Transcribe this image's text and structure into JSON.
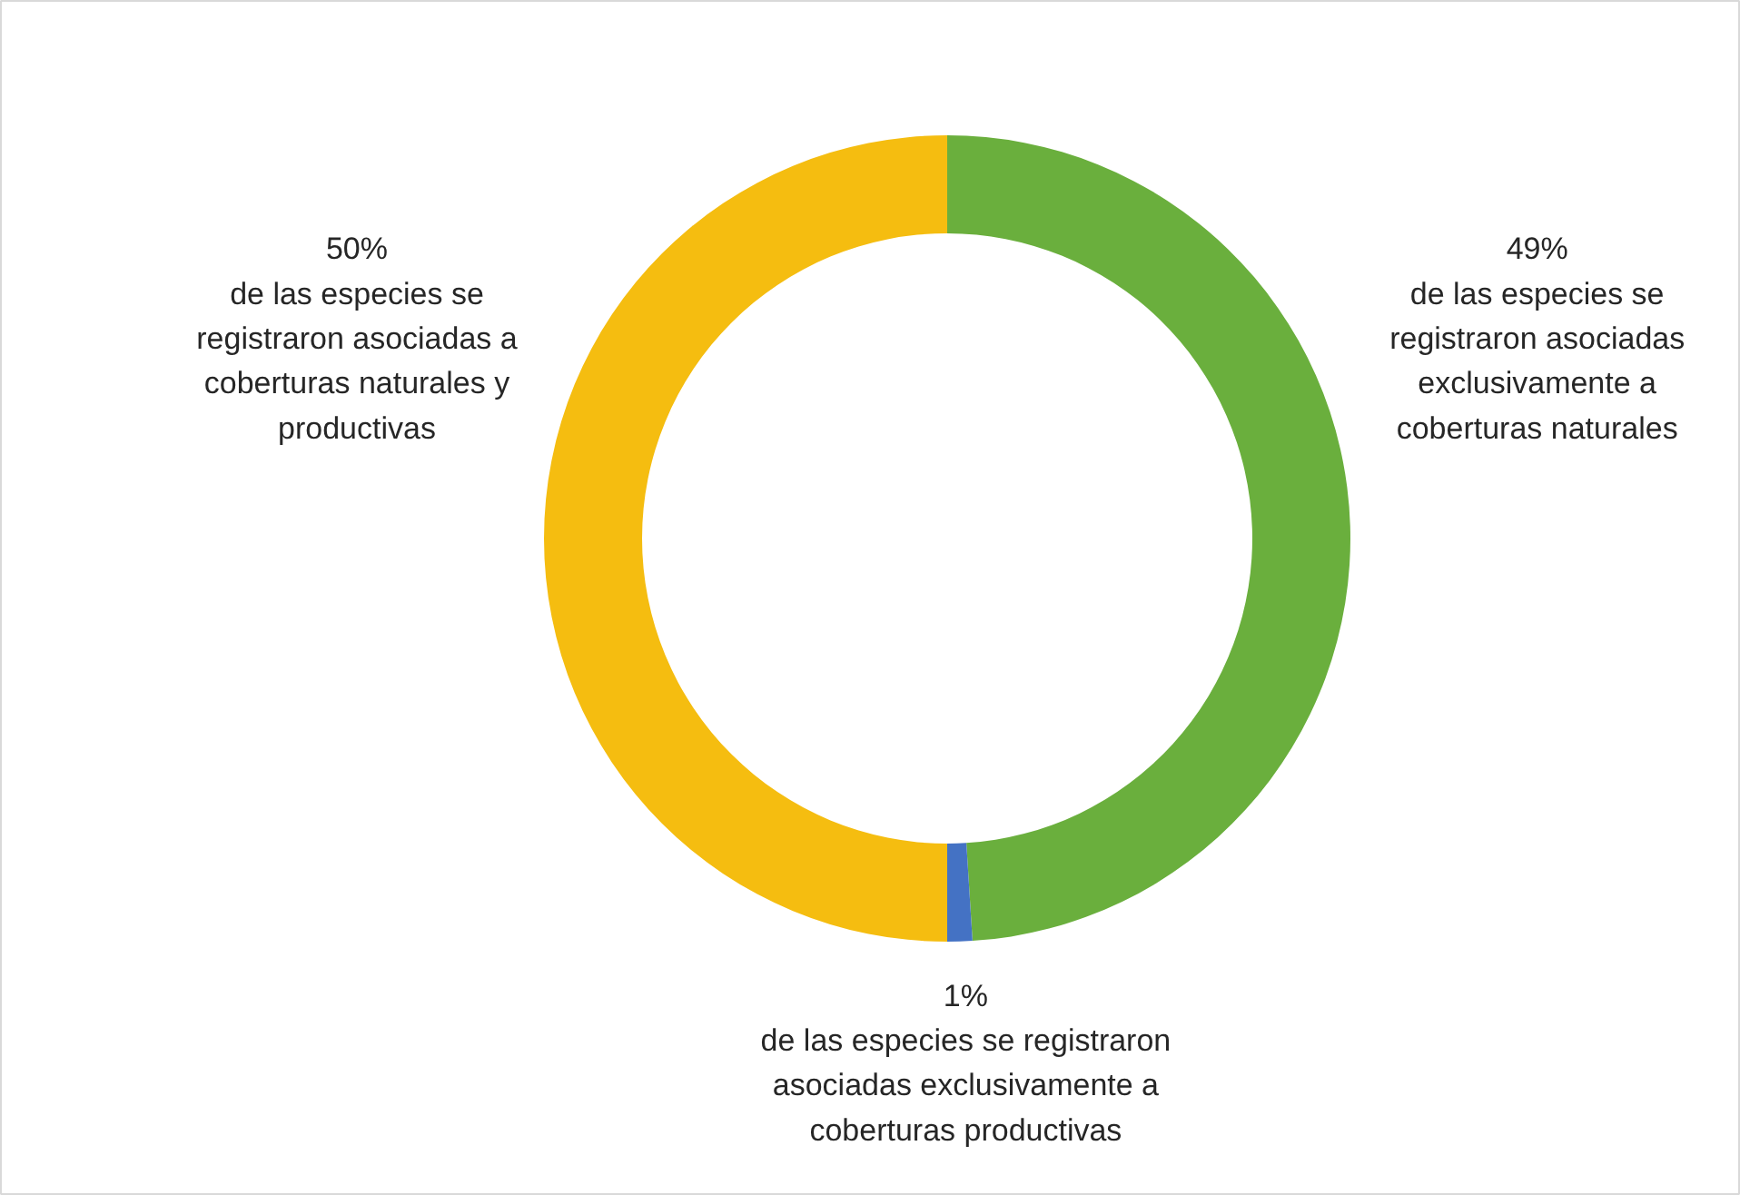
{
  "chart_data": {
    "type": "donut",
    "categories": [
      "de las especies se\nregistraron asociadas\nexclusivamente a\ncoberturas naturales",
      "de las especies se registraron\nasociadas exclusivamente a\ncoberturas productivas",
      "de las especies se\nregistraron asociadas a\ncoberturas naturales y\nproductivas"
    ],
    "values": [
      49,
      1,
      50
    ],
    "colors": [
      "#6aaf3d",
      "#4472c4",
      "#f5bd10"
    ],
    "value_labels": [
      "49%",
      "1%",
      "50%"
    ]
  }
}
